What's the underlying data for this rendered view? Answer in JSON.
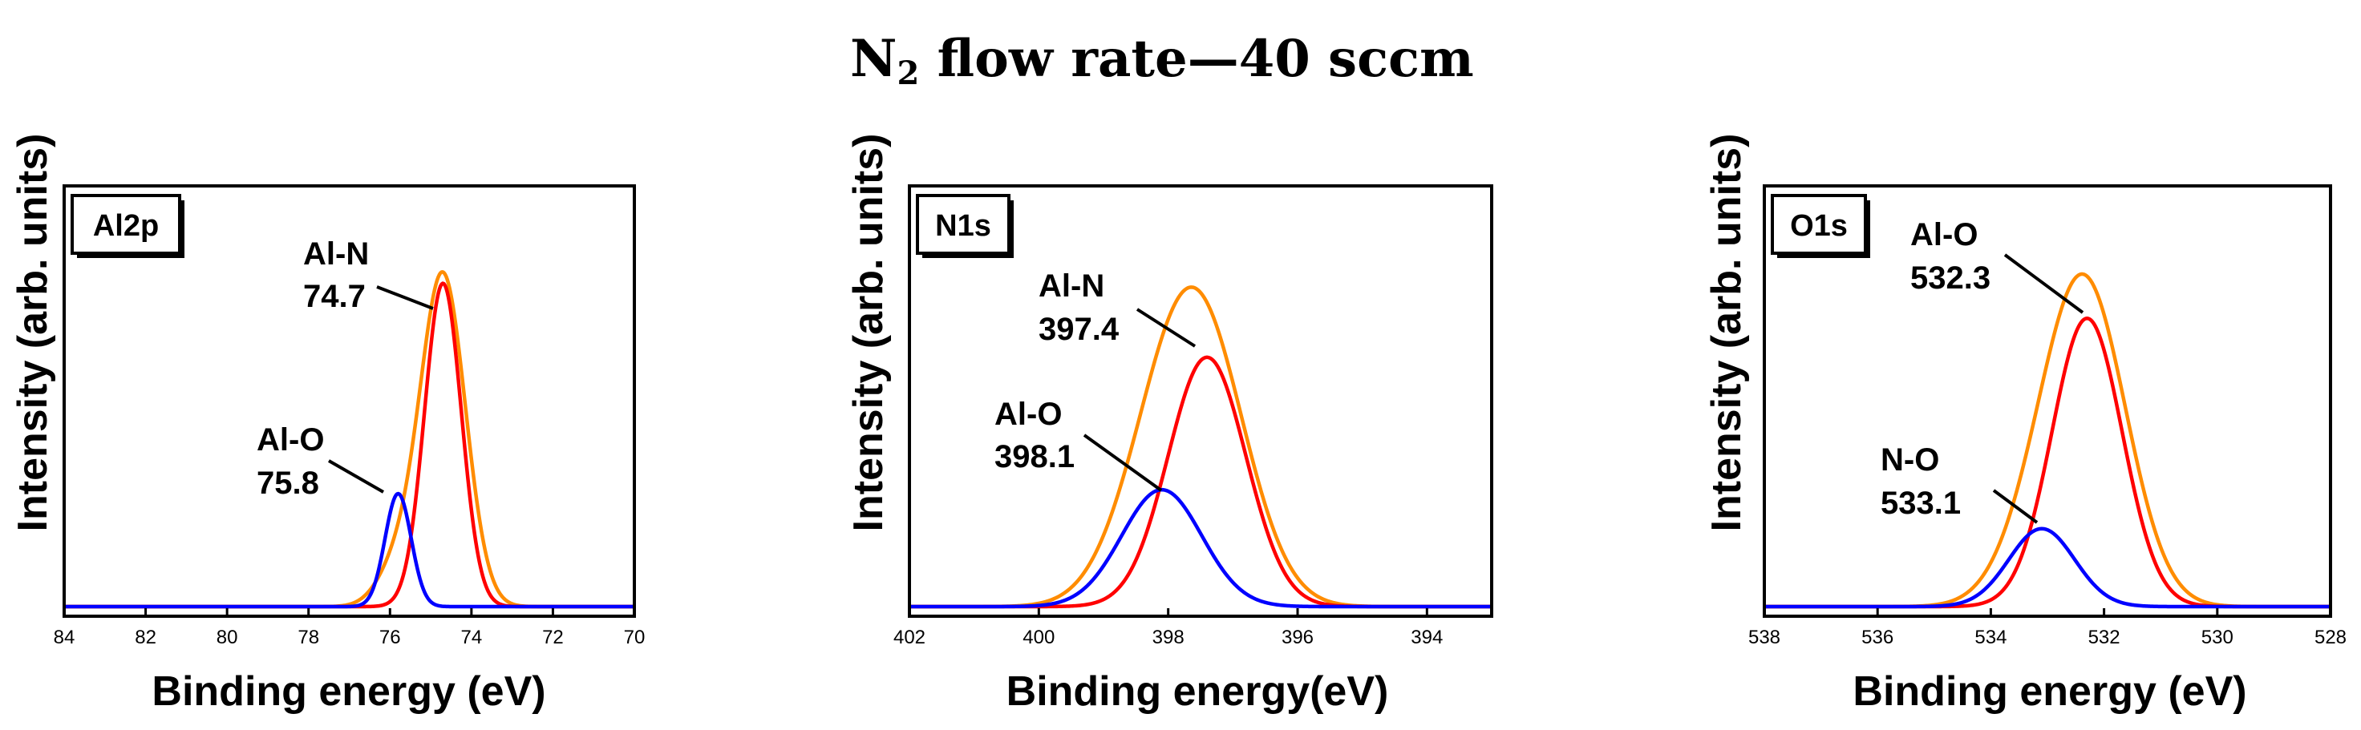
{
  "figure": {
    "title_main": "N",
    "title_sub": "2",
    "title_rest": " flow rate—40 sccm"
  },
  "colors": {
    "envelope": "#ff8c00",
    "main_peak": "#ff0000",
    "minor_peak": "#0000ff"
  },
  "chart_data": [
    {
      "type": "line",
      "panel_label": "Al2p",
      "xlabel": "Binding energy (eV)",
      "ylabel": "Intensity (arb. units)",
      "xlim": [
        84,
        70
      ],
      "xticks": [
        84,
        82,
        80,
        78,
        76,
        74,
        72,
        70
      ],
      "ylim": [
        0,
        1.08
      ],
      "series": [
        {
          "name": "envelope",
          "color": "envelope",
          "peaks": [
            {
              "center": 74.7,
              "amp": 0.85,
              "sigma": 0.55
            },
            {
              "center": 75.8,
              "amp": 0.1,
              "sigma": 0.5
            }
          ]
        },
        {
          "name": "Al-N",
          "color": "main_peak",
          "peaks": [
            {
              "center": 74.7,
              "amp": 0.83,
              "sigma": 0.45
            }
          ]
        },
        {
          "name": "Al-O",
          "color": "minor_peak",
          "peaks": [
            {
              "center": 75.8,
              "amp": 0.29,
              "sigma": 0.32
            }
          ]
        }
      ],
      "annotations": [
        {
          "line1": "Al-N",
          "line2": "74.7"
        },
        {
          "line1": "Al-O",
          "line2": "75.8"
        }
      ]
    },
    {
      "type": "line",
      "panel_label": "N1s",
      "xlabel": "Binding energy(eV)",
      "ylabel": "Intensity (arb. units)",
      "xlim": [
        402,
        393
      ],
      "xticks": [
        402,
        400,
        398,
        396,
        394
      ],
      "ylim": [
        0,
        1.08
      ],
      "series": [
        {
          "name": "envelope",
          "color": "envelope",
          "peaks": [
            {
              "center": 397.45,
              "amp": 0.6,
              "sigma": 0.7
            },
            {
              "center": 398.1,
              "amp": 0.3,
              "sigma": 0.7
            }
          ]
        },
        {
          "name": "Al-N",
          "color": "main_peak",
          "peaks": [
            {
              "center": 397.4,
              "amp": 0.64,
              "sigma": 0.6
            }
          ]
        },
        {
          "name": "Al-O",
          "color": "minor_peak",
          "peaks": [
            {
              "center": 398.1,
              "amp": 0.3,
              "sigma": 0.62
            }
          ]
        }
      ],
      "annotations": [
        {
          "line1": "Al-N",
          "line2": "397.4"
        },
        {
          "line1": "Al-O",
          "line2": "398.1"
        }
      ]
    },
    {
      "type": "line",
      "panel_label": "O1s",
      "xlabel": "Binding energy (eV)",
      "ylabel": "Intensity (arb. units)",
      "xlim": [
        538,
        528
      ],
      "xticks": [
        538,
        536,
        534,
        532,
        530,
        528
      ],
      "ylim": [
        0,
        1.08
      ],
      "series": [
        {
          "name": "envelope",
          "color": "envelope",
          "peaks": [
            {
              "center": 532.3,
              "amp": 0.77,
              "sigma": 0.72
            },
            {
              "center": 533.1,
              "amp": 0.15,
              "sigma": 0.7
            }
          ]
        },
        {
          "name": "Al-O",
          "color": "main_peak",
          "peaks": [
            {
              "center": 532.3,
              "amp": 0.74,
              "sigma": 0.62
            }
          ]
        },
        {
          "name": "N-O",
          "color": "minor_peak",
          "peaks": [
            {
              "center": 533.1,
              "amp": 0.2,
              "sigma": 0.58
            }
          ]
        }
      ],
      "annotations": [
        {
          "line1": "Al-O",
          "line2": "532.3"
        },
        {
          "line1": "N-O",
          "line2": "533.1"
        }
      ]
    }
  ]
}
